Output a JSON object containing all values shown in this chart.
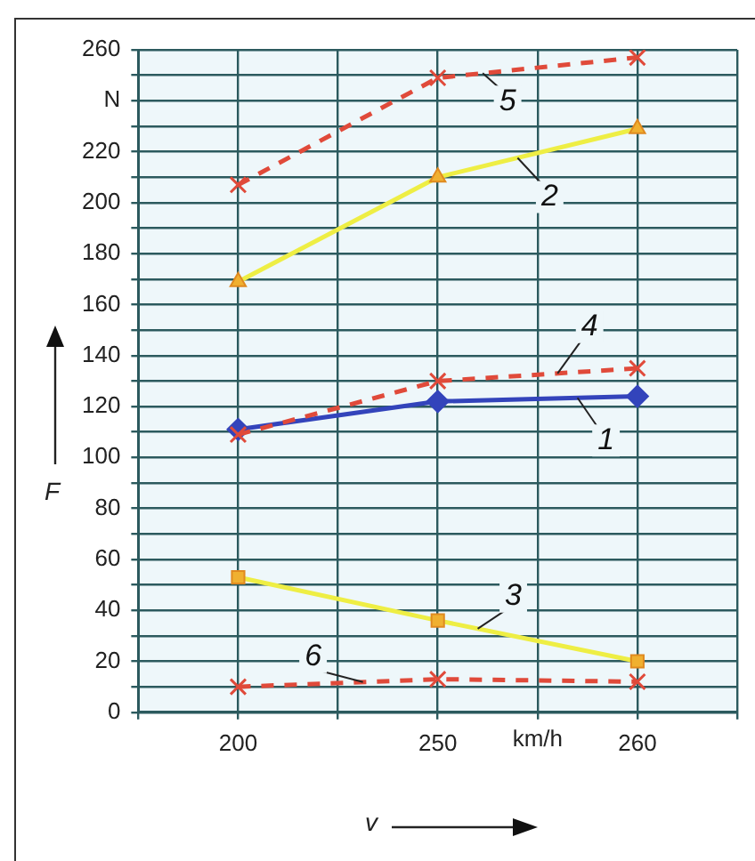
{
  "chart_data": {
    "type": "line",
    "xlabel": "v",
    "ylabel": "F",
    "annotations": [
      "km/h"
    ],
    "categories": [
      "200",
      "250",
      "260"
    ],
    "ylim": [
      0,
      260
    ],
    "yticks": [
      0,
      {
        "value": 10,
        "label": null
      },
      20,
      {
        "value": 30,
        "label": null
      },
      40,
      {
        "value": 50,
        "label": null
      },
      60,
      {
        "value": 70,
        "label": null
      },
      80,
      {
        "value": 90,
        "label": null
      },
      100,
      {
        "value": 110,
        "label": null
      },
      120,
      {
        "value": 130,
        "label": null
      },
      140,
      {
        "value": 150,
        "label": null
      },
      160,
      {
        "value": 170,
        "label": null
      },
      180,
      {
        "value": 190,
        "label": null
      },
      200,
      {
        "value": 210,
        "label": null
      },
      220,
      {
        "value": 230,
        "label": null
      },
      {
        "value": 240,
        "label": "N"
      },
      {
        "value": 250,
        "label": null
      },
      260
    ],
    "grid": true,
    "legend": false,
    "series": [
      {
        "name": "1",
        "color": "#3344bb",
        "values": [
          111,
          122,
          124
        ],
        "marker": "diamond",
        "line_style": "solid"
      },
      {
        "name": "2",
        "color": "#eeee44",
        "values": [
          169,
          210,
          229
        ],
        "marker": "triangle",
        "line_style": "solid"
      },
      {
        "name": "3",
        "color": "#eeee44",
        "values": [
          53,
          36,
          20
        ],
        "marker": "square",
        "line_style": "solid"
      },
      {
        "name": "4",
        "color": "#e04a3a",
        "values": [
          109,
          130,
          135
        ],
        "marker": "cross",
        "line_style": "dashed"
      },
      {
        "name": "5",
        "color": "#e04a3a",
        "values": [
          207,
          249,
          257
        ],
        "marker": "cross",
        "line_style": "dashed"
      },
      {
        "name": "6",
        "color": "#e04a3a",
        "values": [
          10,
          13,
          12
        ],
        "marker": "cross",
        "line_style": "dashed"
      }
    ]
  }
}
